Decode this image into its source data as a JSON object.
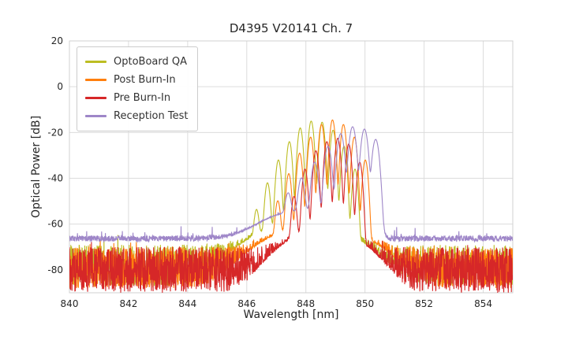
{
  "chart_data": {
    "type": "line",
    "title": "D4395 V20141 Ch. 7",
    "xlabel": "Wavelength [nm]",
    "ylabel": "Optical Power [dB]",
    "xlim": [
      840,
      855
    ],
    "ylim": [
      -90,
      20
    ],
    "xticks": [
      840,
      842,
      844,
      846,
      848,
      850,
      852,
      854
    ],
    "yticks": [
      20,
      0,
      -20,
      -40,
      -60,
      -80
    ],
    "grid": true,
    "grid_color": "#dcdcdc",
    "axes_frame_color": "#d0d0d0",
    "text_color": "#262626",
    "legend_position": "upper-left",
    "series": [
      {
        "name": "OptoBoard QA",
        "color": "#bcbd22",
        "noise_floor_db": -78,
        "noise_amplitude_db": 9,
        "mode_width_nm": 0.07,
        "pedestal": {
          "center": 847.9,
          "width": 1.4,
          "height_db": -59
        },
        "peaks": [
          {
            "center": 846.33,
            "height_db": -54
          },
          {
            "center": 846.7,
            "height_db": -42
          },
          {
            "center": 847.07,
            "height_db": -32
          },
          {
            "center": 847.44,
            "height_db": -24
          },
          {
            "center": 847.81,
            "height_db": -18
          },
          {
            "center": 848.18,
            "height_db": -15
          },
          {
            "center": 848.55,
            "height_db": -15.5
          },
          {
            "center": 848.92,
            "height_db": -19
          },
          {
            "center": 849.29,
            "height_db": -26
          },
          {
            "center": 849.66,
            "height_db": -36
          }
        ]
      },
      {
        "name": "Post Burn-In",
        "color": "#ff7f0e",
        "noise_floor_db": -79,
        "noise_amplitude_db": 9,
        "mode_width_nm": 0.07,
        "pedestal": {
          "center": 848.4,
          "width": 1.4,
          "height_db": -60
        },
        "peaks": [
          {
            "center": 847.05,
            "height_db": -50
          },
          {
            "center": 847.42,
            "height_db": -38
          },
          {
            "center": 847.79,
            "height_db": -29
          },
          {
            "center": 848.16,
            "height_db": -22
          },
          {
            "center": 848.53,
            "height_db": -16.5
          },
          {
            "center": 848.9,
            "height_db": -14.5
          },
          {
            "center": 849.27,
            "height_db": -16.5
          },
          {
            "center": 849.64,
            "height_db": -22
          },
          {
            "center": 850.01,
            "height_db": -32
          }
        ]
      },
      {
        "name": "Pre Burn-In",
        "color": "#d62728",
        "noise_floor_db": -80,
        "noise_amplitude_db": 10,
        "mode_width_nm": 0.07,
        "pedestal": {
          "center": 848.6,
          "width": 1.1,
          "height_db": -62
        },
        "peaks": [
          {
            "center": 847.6,
            "height_db": -48
          },
          {
            "center": 847.97,
            "height_db": -36
          },
          {
            "center": 848.34,
            "height_db": -28
          },
          {
            "center": 848.71,
            "height_db": -24
          },
          {
            "center": 849.08,
            "height_db": -22.5
          },
          {
            "center": 849.45,
            "height_db": -25
          },
          {
            "center": 849.82,
            "height_db": -33
          }
        ]
      },
      {
        "name": "Reception Test",
        "color": "#9e86c8",
        "noise_floor_db": -66.3,
        "noise_amplitude_db": 1.3,
        "mode_width_nm": 0.09,
        "plateau": {
          "height_db": -54,
          "left": 846.9,
          "left_width": 0.4,
          "right": 850.52,
          "right_width": 0.05
        },
        "peaks": [
          {
            "center": 847.4,
            "height_db": -47
          },
          {
            "center": 847.85,
            "height_db": -40
          },
          {
            "center": 848.3,
            "height_db": -33
          },
          {
            "center": 848.75,
            "height_db": -26
          },
          {
            "center": 849.18,
            "height_db": -20.5
          },
          {
            "center": 849.58,
            "height_db": -17.5
          },
          {
            "center": 849.98,
            "height_db": -18.5
          },
          {
            "center": 850.36,
            "height_db": -23
          }
        ]
      }
    ]
  }
}
